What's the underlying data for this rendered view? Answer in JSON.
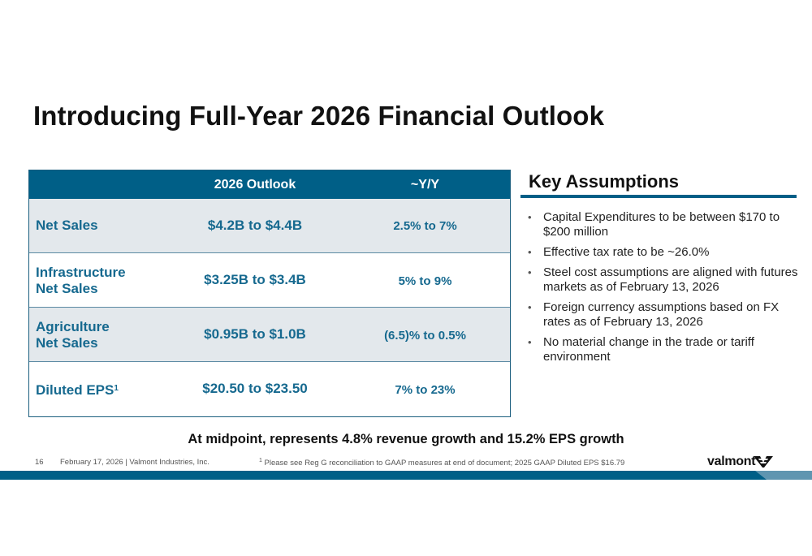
{
  "title": "Introducing Full-Year 2026 Financial Outlook",
  "table": {
    "headers": [
      "",
      "2026 Outlook",
      "~Y/Y"
    ],
    "rows": [
      {
        "label": "Net Sales",
        "outlook": "$4.2B to $4.4B",
        "yy": "2.5% to 7%"
      },
      {
        "label": [
          "Infrastructure",
          "Net Sales"
        ],
        "outlook": "$3.25B to $3.4B",
        "yy": "5% to 9%"
      },
      {
        "label": [
          "Agriculture",
          "Net Sales"
        ],
        "outlook": "$0.95B to $1.0B",
        "yy": "(6.5)% to 0.5%"
      },
      {
        "label": "Diluted EPS",
        "label_superscript": "1",
        "outlook": "$20.50 to $23.50",
        "yy": "7% to 23%"
      }
    ]
  },
  "key_assumptions": {
    "heading": "Key Assumptions",
    "items": [
      "Capital Expenditures to be between $170 to $200 million",
      "Effective tax rate to be ~26.0%",
      "Steel cost assumptions are aligned with futures markets as of February 13, 2026",
      "Foreign currency assumptions based on FX rates as of February 13, 2026",
      "No material change in the trade or tariff environment"
    ]
  },
  "midpoint_note": "At midpoint, represents 4.8% revenue growth and 15.2% EPS growth",
  "footer": {
    "page_number": "16",
    "date_company": "February 17, 2026  | Valmont Industries, Inc.",
    "footnote_marker": "1",
    "footnote": "Please see Reg G reconciliation to GAAP measures at end of document; 2025 GAAP Diluted EPS $16.79",
    "logo_text": "valmont"
  },
  "colors": {
    "header_blue": "#005f87",
    "row_text_blue": "#16698f",
    "shaded_row": "#e3e8ec",
    "band_light": "#5f95b0"
  }
}
